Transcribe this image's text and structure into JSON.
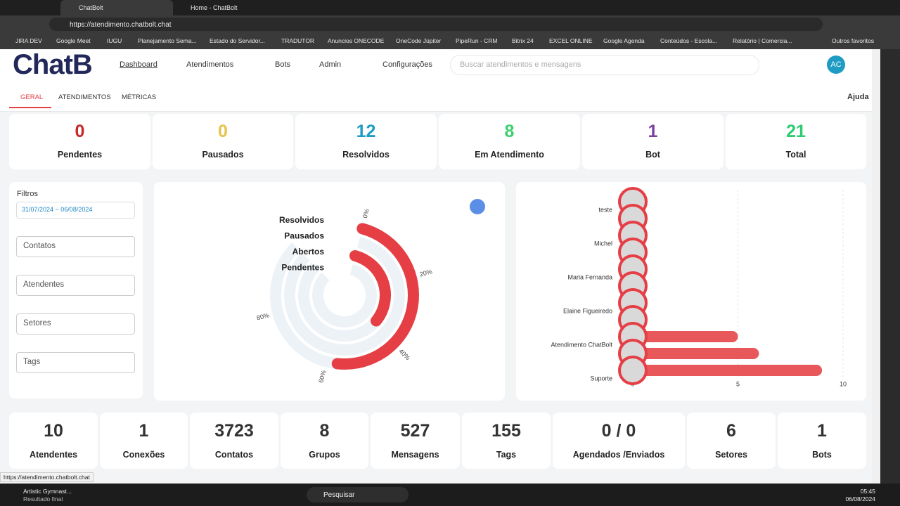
{
  "browser": {
    "tabs": [
      "ChatBolt",
      "Home - ChatBolt"
    ],
    "url": "https://atendimento.chatbolt.chat",
    "bookmarks": [
      "JIRA DEV",
      "Google Meet",
      "IUGU",
      "Planejamento Sema...",
      "Estado do Servidor...",
      "TRADUTOR",
      "Anuncios ONECODE",
      "OneCode Júpiter",
      "PipeRun - CRM",
      "Bitrix 24",
      "EXCEL ONLINE",
      "Google Agenda",
      "Conteúdos - Escola...",
      "Relatório | Comercia..."
    ],
    "other_bookmarks": "Outros favoritos",
    "status_url": "https://atendimento.chatbolt.chat"
  },
  "header": {
    "logo": "ChatB",
    "nav": [
      "Dashboard",
      "Atendimentos",
      "Bots",
      "Admin",
      "Configurações"
    ],
    "search_placeholder": "Buscar atendimentos e mensagens",
    "avatar": "AC"
  },
  "subtabs": [
    "GERAL",
    "ATENDIMENTOS",
    "MÉTRICAS"
  ],
  "help": "Ajuda",
  "top_stats": [
    {
      "value": "0",
      "label": "Pendentes",
      "color": "#c62828"
    },
    {
      "value": "0",
      "label": "Pausados",
      "color": "#e6c34a"
    },
    {
      "value": "12",
      "label": "Resolvidos",
      "color": "#1e9cc4"
    },
    {
      "value": "8",
      "label": "Em Atendimento",
      "color": "#3ecf6e"
    },
    {
      "value": "1",
      "label": "Bot",
      "color": "#7b3f9e"
    },
    {
      "value": "21",
      "label": "Total",
      "color": "#2ecc71"
    }
  ],
  "filters": {
    "title": "Filtros",
    "date_range": "31/07/2024 ~ 06/08/2024",
    "selects": [
      "Contatos",
      "Atendentes",
      "Setores",
      "Tags"
    ]
  },
  "radial_chart": {
    "type": "radialBar",
    "categories": [
      "Resolvidos",
      "Pausados",
      "Abertos",
      "Pendentes"
    ],
    "values": [
      57,
      0,
      38,
      0
    ],
    "color": "#e53e45",
    "track_color": "#edf2f7",
    "ticks": [
      {
        "value": 0,
        "label": "0%"
      },
      {
        "value": 20,
        "label": "20%"
      },
      {
        "value": 40,
        "label": "40%"
      },
      {
        "value": 60,
        "label": "60%"
      },
      {
        "value": 80,
        "label": "80%"
      }
    ]
  },
  "bar_chart": {
    "type": "bar",
    "orientation": "horizontal",
    "categories": [
      "teste",
      null,
      "Michel",
      null,
      "Maria Fernanda",
      null,
      "Elaine Figueiredo",
      null,
      "Atendimento ChatBolt",
      null,
      "Suporte"
    ],
    "values": [
      0,
      0,
      0,
      0,
      0,
      0,
      0,
      0,
      5,
      6,
      9
    ],
    "color": "#e8575a",
    "xlim": [
      0,
      10
    ],
    "xticks": [
      0,
      5,
      10
    ],
    "grid": true
  },
  "bottom_stats": [
    {
      "value": "10",
      "label": "Atendentes"
    },
    {
      "value": "1",
      "label": "Conexões"
    },
    {
      "value": "3723",
      "label": "Contatos"
    },
    {
      "value": "8",
      "label": "Grupos"
    },
    {
      "value": "527",
      "label": "Mensagens"
    },
    {
      "value": "155",
      "label": "Tags"
    },
    {
      "value": "0 / 0",
      "label": "Agendados /Enviados"
    },
    {
      "value": "6",
      "label": "Setores"
    },
    {
      "value": "1",
      "label": "Bots"
    }
  ],
  "taskbar": {
    "media_title": "Artistic Gymnast...",
    "media_subtitle": "Resultado final",
    "search": "Pesquisar",
    "time": "05:45",
    "date": "06/08/2024"
  }
}
